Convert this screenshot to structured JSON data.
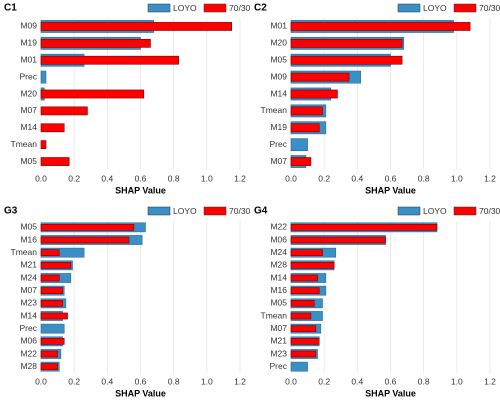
{
  "chart_data": [
    {
      "type": "bar",
      "orientation": "horizontal",
      "title": "C1",
      "xlabel": "SHAP Value",
      "categories": [
        "M09",
        "M19",
        "M01",
        "Prec",
        "M20",
        "M07",
        "M14",
        "Tmean",
        "M05"
      ],
      "series": [
        {
          "name": "LOYO",
          "color": "#3a8fc4",
          "values": [
            0.68,
            0.6,
            0.26,
            0.03,
            0.02,
            0,
            0,
            0,
            0
          ]
        },
        {
          "name": "70/30",
          "color": "#ff0000",
          "values": [
            1.15,
            0.66,
            0.83,
            0,
            0.62,
            0.28,
            0.14,
            0.03,
            0.17
          ]
        }
      ],
      "xlim": [
        0,
        1.2
      ],
      "xticks": [
        {
          "value": 0,
          "label": "0.0"
        },
        0.2,
        0.4,
        0.6,
        0.8,
        {
          "value": 1,
          "label": "1.0"
        },
        1.2
      ],
      "grid": true
    },
    {
      "type": "bar",
      "orientation": "horizontal",
      "title": "C2",
      "xlabel": "SHAP Value",
      "categories": [
        "M01",
        "M20",
        "M05",
        "M09",
        "M14",
        "Tmean",
        "M19",
        "Prec",
        "M07"
      ],
      "series": [
        {
          "name": "LOYO",
          "color": "#3a8fc4",
          "values": [
            0.98,
            0.68,
            0.6,
            0.42,
            0.24,
            0.21,
            0.21,
            0.1,
            0.09
          ]
        },
        {
          "name": "70/30",
          "color": "#ff0000",
          "values": [
            1.08,
            0.67,
            0.67,
            0.35,
            0.28,
            0.19,
            0.17,
            0,
            0.12
          ]
        }
      ],
      "xlim": [
        0,
        1.2
      ],
      "xticks": [
        {
          "value": 0,
          "label": "0.0"
        },
        0.2,
        0.4,
        0.6,
        0.8,
        {
          "value": 1,
          "label": "1.0"
        },
        1.2
      ],
      "grid": true
    },
    {
      "type": "bar",
      "orientation": "horizontal",
      "title": "G3",
      "xlabel": "SHAP Value",
      "categories": [
        "M05",
        "M16",
        "Tmean",
        "M21",
        "M24",
        "M07",
        "M23",
        "M14",
        "Prec",
        "M06",
        "M22",
        "M28"
      ],
      "series": [
        {
          "name": "LOYO",
          "color": "#3a8fc4",
          "values": [
            0.63,
            0.61,
            0.26,
            0.19,
            0.18,
            0.14,
            0.15,
            0.13,
            0.14,
            0.13,
            0.12,
            0.11
          ]
        },
        {
          "name": "70/30",
          "color": "#ff0000",
          "values": [
            0.56,
            0.53,
            0.11,
            0.18,
            0.11,
            0.13,
            0.13,
            0.16,
            0,
            0.14,
            0.1,
            0.1
          ]
        }
      ],
      "xlim": [
        0,
        1.2
      ],
      "xticks": [
        {
          "value": 0,
          "label": "0.0"
        },
        0.2,
        0.4,
        0.6,
        0.8,
        {
          "value": 1,
          "label": "1.0"
        },
        1.2
      ],
      "grid": true
    },
    {
      "type": "bar",
      "orientation": "horizontal",
      "title": "G4",
      "xlabel": "SHAP Value",
      "categories": [
        "M22",
        "M06",
        "M24",
        "M28",
        "M14",
        "M16",
        "M05",
        "Tmean",
        "M07",
        "M21",
        "M23",
        "Prec"
      ],
      "series": [
        {
          "name": "LOYO",
          "color": "#3a8fc4",
          "values": [
            0.88,
            0.57,
            0.27,
            0.26,
            0.21,
            0.21,
            0.19,
            0.19,
            0.18,
            0.17,
            0.16,
            0.1
          ]
        },
        {
          "name": "70/30",
          "color": "#ff0000",
          "values": [
            0.88,
            0.57,
            0.19,
            0.26,
            0.16,
            0.17,
            0.14,
            0.12,
            0.15,
            0.17,
            0.15,
            0
          ]
        }
      ],
      "xlim": [
        0,
        1.2
      ],
      "xticks": [
        {
          "value": 0,
          "label": "0.0"
        },
        0.2,
        0.4,
        0.6,
        0.8,
        {
          "value": 1,
          "label": "1.0"
        },
        1.2
      ],
      "grid": true
    }
  ]
}
